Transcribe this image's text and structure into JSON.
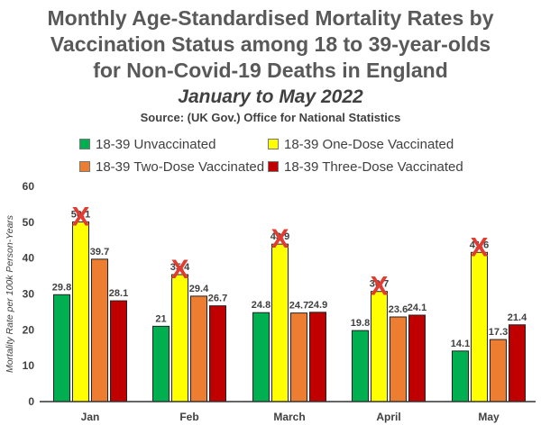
{
  "title_lines": [
    "Monthly Age-Standardised Mortality Rates by",
    "Vaccination Status among 18 to 39-year-olds",
    "for Non-Covid-19 Deaths in England"
  ],
  "subtitle": "January to May 2022",
  "source": "Source: (UK Gov.) Office for National Statistics",
  "colors": {
    "unvaccinated": "#00b050",
    "one_dose": "#ffff00",
    "two_dose": "#ed7d31",
    "three_dose": "#c00000",
    "marker": "#e03c31"
  },
  "chart_data": {
    "type": "bar",
    "categories": [
      "Jan",
      "Feb",
      "March",
      "April",
      "May"
    ],
    "series": [
      {
        "name": "18-39 Unvaccinated",
        "values": [
          29.8,
          21,
          24.8,
          19.8,
          14.1
        ]
      },
      {
        "name": "18-39 One-Dose Vaccinated",
        "values": [
          50.1,
          35.4,
          43.9,
          30.7,
          41.6
        ]
      },
      {
        "name": "18-39 Two-Dose Vaccinated",
        "values": [
          39.7,
          29.4,
          24.7,
          23.6,
          17.3
        ]
      },
      {
        "name": "18-39 Three-Dose Vaccinated",
        "values": [
          28.1,
          26.7,
          24.9,
          24.1,
          21.4
        ]
      }
    ],
    "ylabel": "Mortality Rate per 100k Person-Years",
    "ylim": [
      0,
      60
    ],
    "yticks": [
      0,
      10,
      20,
      30,
      40,
      50,
      60
    ],
    "grid": false,
    "legend_position": "top",
    "annotations": {
      "marker": "X",
      "series": "18-39 One-Dose Vaccinated"
    }
  }
}
